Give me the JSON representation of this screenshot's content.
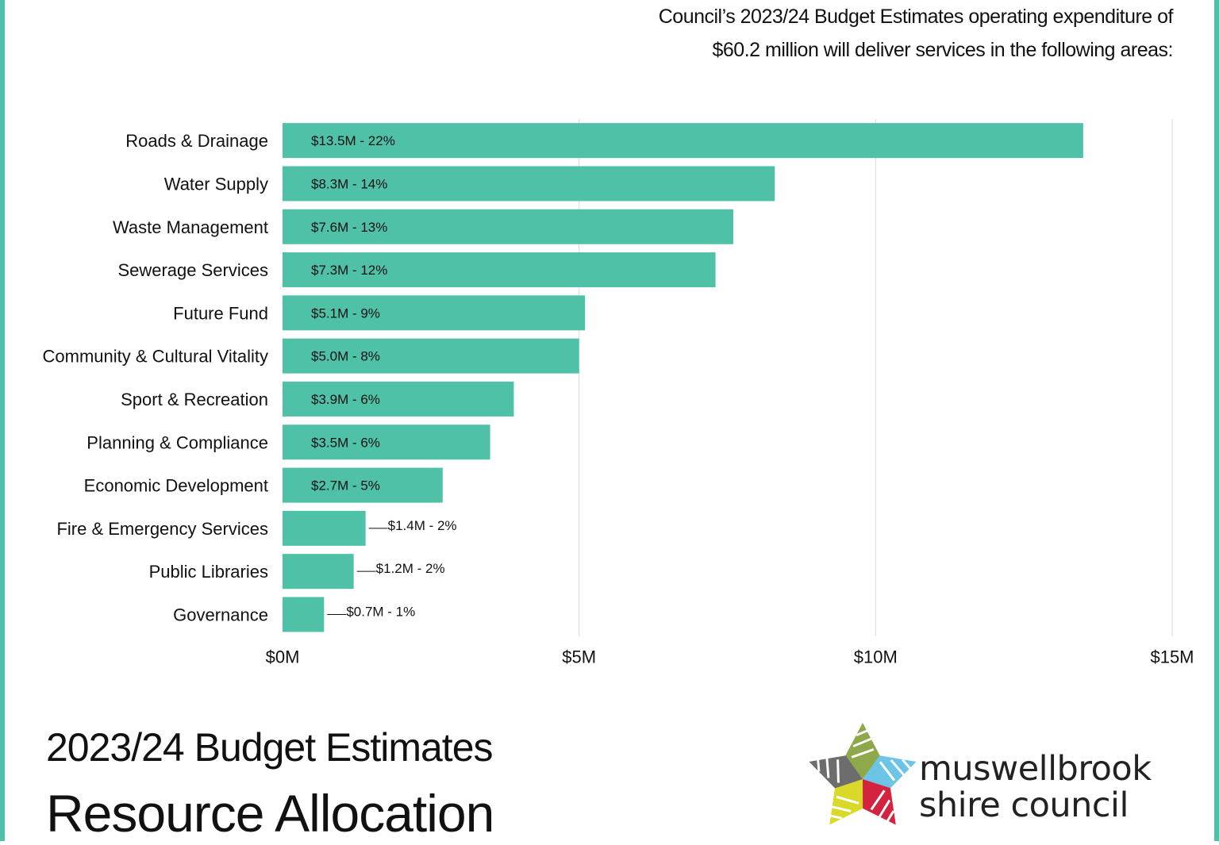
{
  "header": {
    "intro_line1": "Council’s 2023/24 Budget Estimates operating expenditure of",
    "intro_line2": "$60.2 million will deliver services in the following areas:"
  },
  "footer": {
    "subtitle": "2023/24 Budget Estimates",
    "title": "Resource Allocation"
  },
  "logo": {
    "line1": "muswellbrook",
    "line2": "shire council",
    "icon": "star-logo-icon"
  },
  "colors": {
    "bar": "#4fc1a7",
    "frame": "#4fc1a7",
    "grid": "#d9d9d9",
    "text": "#111111"
  },
  "chart_data": {
    "type": "bar",
    "orientation": "horizontal",
    "categories": [
      "Roads & Drainage",
      "Water Supply",
      "Waste Management",
      "Sewerage Services",
      "Future Fund",
      "Community & Cultural Vitality",
      "Sport & Recreation",
      "Planning & Compliance",
      "Economic Development",
      "Fire & Emergency Services",
      "Public Libraries",
      "Governance"
    ],
    "values": [
      13.5,
      8.3,
      7.6,
      7.3,
      5.1,
      5.0,
      3.9,
      3.5,
      2.7,
      1.4,
      1.2,
      0.7
    ],
    "data_labels": [
      "$13.5M - 22%",
      "$8.3M - 14%",
      "$7.6M - 13%",
      "$7.3M - 12%",
      "$5.1M - 9%",
      "$5.0M - 8%",
      "$3.9M - 6%",
      "$3.5M - 6%",
      "$2.7M - 5%",
      "$1.4M - 2%",
      "$1.2M - 2%",
      "$0.7M - 1%"
    ],
    "xlim": [
      0,
      15
    ],
    "xticks": [
      0,
      5,
      10,
      15
    ],
    "xtick_labels": [
      "$0M",
      "$5M",
      "$10M",
      "$15M"
    ],
    "grid": true
  }
}
